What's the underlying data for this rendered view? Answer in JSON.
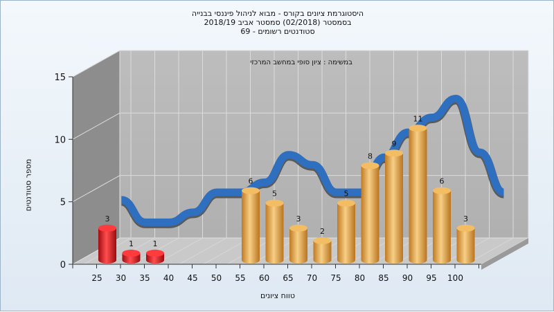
{
  "title_lines": [
    "היסטוגרמת ציונים בקורס - מבוא לניהול פיננסי בבנייה",
    "בסמסטר  (02/2018)  סמסטר אביב 2018/19",
    "סטודנטים רשומים - 69"
  ],
  "annotation": "במשימה : ציון סופי במחשב המרכזי",
  "chart_data": {
    "type": "bar",
    "title": "היסטוגרמת ציונים בקורס - מבוא לניהול פיננסי בבנייה",
    "xlabel": "טווח ציונים",
    "ylabel": "מספר סטודנטים",
    "ylim": [
      0,
      15
    ],
    "yticks": [
      0,
      5,
      10,
      15
    ],
    "x_ticks": [
      "25",
      "30",
      "35",
      "40",
      "45",
      "50",
      "55",
      "60",
      "65",
      "70",
      "75",
      "80",
      "85",
      "90",
      "95",
      "100"
    ],
    "bars": [
      {
        "x": "25",
        "value": 3,
        "color": "red"
      },
      {
        "x": "30",
        "value": 1,
        "color": "red"
      },
      {
        "x": "35",
        "value": 1,
        "color": "red"
      },
      {
        "x": "55",
        "value": 6,
        "color": "gold"
      },
      {
        "x": "60",
        "value": 5,
        "color": "gold"
      },
      {
        "x": "65",
        "value": 3,
        "color": "gold"
      },
      {
        "x": "70",
        "value": 2,
        "color": "gold"
      },
      {
        "x": "75",
        "value": 5,
        "color": "gold"
      },
      {
        "x": "80",
        "value": 8,
        "color": "gold"
      },
      {
        "x": "85",
        "value": 9,
        "color": "gold"
      },
      {
        "x": "90",
        "value": 11,
        "color": "gold"
      },
      {
        "x": "95",
        "value": 6,
        "color": "gold"
      },
      {
        "x": "100",
        "value": 3,
        "color": "gold"
      }
    ],
    "curve": [
      {
        "x": 25,
        "y": 4.0
      },
      {
        "x": 30,
        "y": 2.2
      },
      {
        "x": 35,
        "y": 2.2
      },
      {
        "x": 40,
        "y": 3.0
      },
      {
        "x": 45,
        "y": 4.6
      },
      {
        "x": 50,
        "y": 4.6
      },
      {
        "x": 55,
        "y": 5.4
      },
      {
        "x": 60,
        "y": 7.6
      },
      {
        "x": 65,
        "y": 6.8
      },
      {
        "x": 70,
        "y": 4.6
      },
      {
        "x": 75,
        "y": 4.6
      },
      {
        "x": 80,
        "y": 7.4
      },
      {
        "x": 85,
        "y": 9.4
      },
      {
        "x": 90,
        "y": 10.6
      },
      {
        "x": 95,
        "y": 12.1
      },
      {
        "x": 100,
        "y": 7.8
      },
      {
        "x": 105,
        "y": 4.6
      }
    ],
    "colors": {
      "red": "#e0161b",
      "gold": "#e8a94a",
      "curve": "#2f6fc0",
      "curve_shadow": "#5a5a5a",
      "wall": "#b7b7b7",
      "side": "#8c8c8c"
    }
  }
}
